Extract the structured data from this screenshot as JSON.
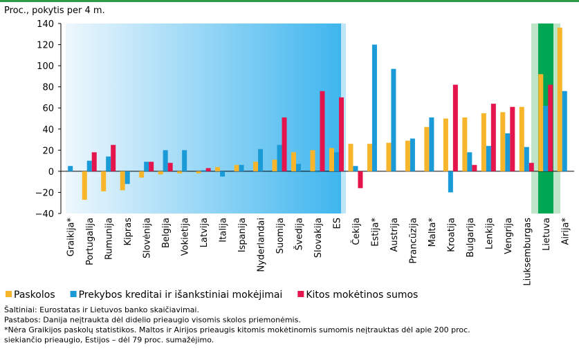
{
  "chart_data": {
    "type": "bar",
    "subtitle": "Proc., pokytis per 4 m.",
    "categories": [
      "Graikija*",
      "Portugalija",
      "Rumunija",
      "Kipras",
      "Slovėnija",
      "Belgija",
      "Vokietija",
      "Latvija",
      "Italija",
      "Ispanija",
      "Nyderlandai",
      "Suomija",
      "Švedija",
      "Slovakija",
      "ES",
      "Čekija",
      "Estija*",
      "Austrija",
      "Prancūzija",
      "Malta*",
      "Kroatija",
      "Bulgarija",
      "Lenkija",
      "Vengrija",
      "Liuksemburgas",
      "Lietuva",
      "Airija*"
    ],
    "series": [
      {
        "name": "Paskolos",
        "color": "#f7b52c",
        "values": [
          null,
          -27,
          -19,
          -18,
          -6,
          -3,
          -2,
          -2,
          4,
          6,
          9,
          11,
          18,
          20,
          22,
          26,
          26,
          27,
          29,
          42,
          50,
          51,
          55,
          56,
          61,
          92,
          136
        ]
      },
      {
        "name": "Prekybos kreditai ir išankstiniai mokėjimai",
        "color": "#1a9bd7",
        "values": [
          5,
          10,
          14,
          -12,
          9,
          20,
          20,
          1,
          -5,
          6,
          21,
          25,
          7,
          -1,
          18,
          5,
          120,
          97,
          31,
          51,
          -20,
          18,
          24,
          36,
          23,
          62,
          76
        ]
      },
      {
        "name": "Kitos mokėtinos sumos",
        "color": "#e4144c",
        "values": [
          null,
          18,
          25,
          null,
          9,
          8,
          null,
          3,
          null,
          null,
          null,
          51,
          null,
          76,
          70,
          -16,
          null,
          null,
          null,
          null,
          82,
          6,
          64,
          61,
          8,
          82,
          null
        ]
      }
    ],
    "ylim": [
      -40,
      140
    ],
    "yticks": [
      {
        "value": -40,
        "label": "−40"
      },
      {
        "value": -20,
        "label": "−20"
      },
      0,
      20,
      40,
      60,
      80,
      100,
      120,
      140
    ],
    "notes": [
      "Šaltiniai: Eurostatas ir Lietuvos banko skaičiavimai.",
      "Pastabos: Danija neįtraukta dėl didelio prieaugio visomis skolos priemonėmis.",
      "*Nėra Graikijos paskolų statistikos. Maltos ir Airijos prieaugis kitomis mokėtinomis sumomis neįtrauktas dėl apie 200 proc.",
      "siekiančio prieaugio, Estijos – dėl 79 proc. sumažėjimo."
    ]
  }
}
